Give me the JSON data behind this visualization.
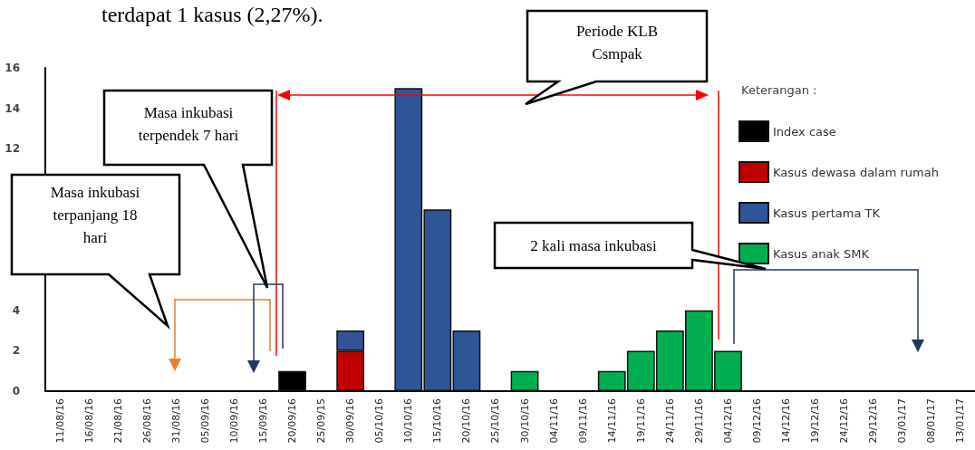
{
  "chart_data": {
    "type": "bar",
    "stacked": true,
    "categories": [
      "11/08/16",
      "16/08/16",
      "21/08/16",
      "26/08/16",
      "31/08/16",
      "05/09/16",
      "10/09/16",
      "15/09/16",
      "20/09/16",
      "25/09/15",
      "30/09/16",
      "05/10/16",
      "10/10/16",
      "15/10/16",
      "20/10/16",
      "25/10/16",
      "30/10/16",
      "04/11/16",
      "09/11/16",
      "14/11/16",
      "19/11/16",
      "24/11/16",
      "29/11/16",
      "04/12/16",
      "09/12/16",
      "14/12/16",
      "19/12/16",
      "24/12/16",
      "29/12/16",
      "03/01/17",
      "08/01/17",
      "13/01/17"
    ],
    "series": [
      {
        "name": "Index case",
        "color": "#000000",
        "values": [
          null,
          null,
          null,
          null,
          null,
          null,
          null,
          null,
          1,
          null,
          null,
          null,
          null,
          null,
          null,
          null,
          null,
          null,
          null,
          null,
          null,
          null,
          null,
          null,
          null,
          null,
          null,
          null,
          null,
          null,
          null,
          null
        ]
      },
      {
        "name": "Kasus dewasa dalam rumah",
        "color": "#c00000",
        "values": [
          null,
          null,
          null,
          null,
          null,
          null,
          null,
          null,
          null,
          null,
          2,
          null,
          null,
          null,
          null,
          null,
          null,
          null,
          null,
          null,
          null,
          null,
          null,
          null,
          null,
          null,
          null,
          null,
          null,
          null,
          null,
          null
        ]
      },
      {
        "name": "Kasus pertama TK",
        "color": "#2f5597",
        "values": [
          null,
          null,
          null,
          null,
          null,
          null,
          null,
          null,
          null,
          null,
          1,
          null,
          15,
          9,
          3,
          null,
          null,
          null,
          null,
          null,
          null,
          null,
          null,
          null,
          null,
          null,
          null,
          null,
          null,
          null,
          null,
          null
        ]
      },
      {
        "name": "Kasus anak SMK",
        "color": "#00b050",
        "values": [
          null,
          null,
          null,
          null,
          null,
          null,
          null,
          null,
          null,
          null,
          null,
          null,
          null,
          null,
          null,
          null,
          1,
          null,
          null,
          1,
          2,
          3,
          4,
          2,
          null,
          null,
          null,
          null,
          null,
          null,
          null,
          null
        ]
      }
    ],
    "ylim": [
      0,
      16
    ],
    "yticks": [
      0,
      2,
      4,
      12,
      14,
      16
    ],
    "legend": "top right",
    "legend_title": "Keterangan :",
    "annotations": [
      "terdapat 1 kasus (2,27%).",
      "Masa inkubasi terpanjang 18 hari",
      "Masa inkubasi terpendek 7 hari",
      "Periode KLB Csmpak",
      "2 kali masa inkubasi"
    ]
  }
}
